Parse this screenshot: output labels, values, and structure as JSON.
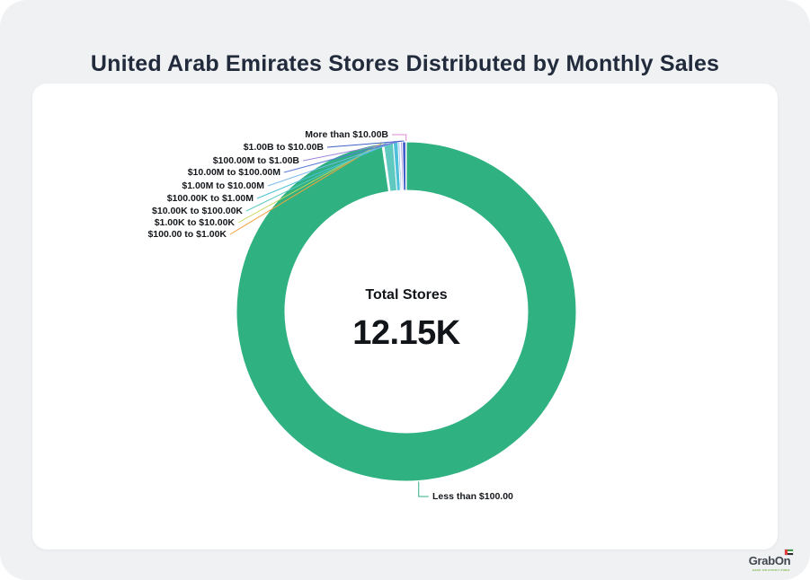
{
  "header": {
    "title": "United Arab Emirates Stores Distributed by Monthly Sales"
  },
  "chart_data": {
    "type": "pie",
    "variant": "donut",
    "title": "United Arab Emirates Stores Distributed by Monthly Sales",
    "total_stores": 12150,
    "center": {
      "label": "Total Stores",
      "value": "12.15K"
    },
    "categories": [
      "Less than $100.00",
      "$100.00 to $1.00K",
      "$1.00K to $10.00K",
      "$10.00K to $100.00K",
      "$100.00K to $1.00M",
      "$1.00M to $10.00M",
      "$10.00M to $100.00M",
      "$100.00M to $1.00B",
      "$1.00B to $10.00B",
      "More than $10.00B"
    ],
    "values": [
      11870,
      8,
      12,
      110,
      55,
      20,
      10,
      20,
      40,
      5
    ],
    "colors": [
      "#2FB182",
      "#F0A23F",
      "#C9D65B",
      "#5FC9C0",
      "#4FC0D9",
      "#79B8EC",
      "#5A7BD8",
      "#9A84DC",
      "#3F5FC8",
      "#E18AD4"
    ],
    "legend_position": "callout-labels",
    "grid": false
  },
  "footer": {
    "logo_text": "GrabOn",
    "logo_tagline": "SAVE ON EVERYTHING",
    "flag": "uae-flag"
  },
  "theme": {
    "page_background": "#eff1f3",
    "card_background": "#ffffff",
    "title_color": "#212b3c",
    "label_color": "#15181c",
    "primary_slice_color": "#2FB182"
  }
}
